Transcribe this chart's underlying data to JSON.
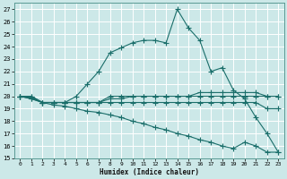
{
  "xlabel": "Humidex (Indice chaleur)",
  "background_color": "#cce8e8",
  "grid_color": "#aacccc",
  "line_color": "#1a6e6a",
  "xlim": [
    -0.5,
    23.5
  ],
  "ylim": [
    15,
    27.5
  ],
  "xticks": [
    0,
    1,
    2,
    3,
    4,
    5,
    6,
    7,
    8,
    9,
    10,
    11,
    12,
    13,
    14,
    15,
    16,
    17,
    18,
    19,
    20,
    21,
    22,
    23
  ],
  "yticks": [
    15,
    16,
    17,
    18,
    19,
    20,
    21,
    22,
    23,
    24,
    25,
    26,
    27
  ],
  "series": [
    {
      "x": [
        0,
        1,
        2,
        3,
        4,
        5,
        6,
        7,
        8,
        9,
        10,
        11,
        12,
        13,
        14,
        15,
        16,
        17,
        18,
        19,
        20,
        21,
        22,
        23
      ],
      "y": [
        20,
        19.8,
        19.5,
        19.5,
        19.5,
        20,
        21,
        22,
        23.5,
        23.9,
        24.3,
        24.5,
        24.5,
        24.3,
        27,
        25.5,
        24.5,
        22,
        22.3,
        20.5,
        19.8,
        18.3,
        17,
        15.5
      ]
    },
    {
      "x": [
        0,
        1,
        2,
        3,
        4,
        5,
        6,
        7,
        8,
        9,
        10,
        11,
        12,
        13,
        14,
        15,
        16,
        17,
        18,
        19,
        20,
        21,
        22,
        23
      ],
      "y": [
        20,
        20,
        19.5,
        19.5,
        19.5,
        19.5,
        19.5,
        19.5,
        20,
        20,
        20,
        20,
        20,
        20,
        20,
        20,
        20.3,
        20.3,
        20.3,
        20.3,
        20.3,
        20.3,
        20,
        20
      ]
    },
    {
      "x": [
        0,
        1,
        2,
        3,
        4,
        5,
        6,
        7,
        8,
        9,
        10,
        11,
        12,
        13,
        14,
        15,
        16,
        17,
        18,
        19,
        20,
        21,
        22,
        23
      ],
      "y": [
        20,
        19.9,
        19.5,
        19.5,
        19.5,
        19.5,
        19.5,
        19.5,
        19.5,
        19.5,
        19.5,
        19.5,
        19.5,
        19.5,
        19.5,
        19.5,
        19.5,
        19.5,
        19.5,
        19.5,
        19.5,
        19.5,
        19,
        19
      ]
    },
    {
      "x": [
        0,
        1,
        2,
        3,
        4,
        5,
        6,
        7,
        8,
        9,
        10,
        11,
        12,
        13,
        14,
        15,
        16,
        17,
        18,
        19,
        20,
        21,
        22,
        23
      ],
      "y": [
        20,
        20,
        19.5,
        19.5,
        19.5,
        19.5,
        19.5,
        19.5,
        19.8,
        19.8,
        20,
        20,
        20,
        20,
        20,
        20,
        20,
        20,
        20,
        20,
        20,
        20,
        20,
        20
      ]
    },
    {
      "x": [
        0,
        1,
        2,
        3,
        4,
        5,
        6,
        7,
        8,
        9,
        10,
        11,
        12,
        13,
        14,
        15,
        16,
        17,
        18,
        19,
        20,
        21,
        22,
        23
      ],
      "y": [
        20,
        19.8,
        19.5,
        19.3,
        19.2,
        19,
        18.8,
        18.7,
        18.5,
        18.3,
        18,
        17.8,
        17.5,
        17.3,
        17,
        16.8,
        16.5,
        16.3,
        16,
        15.8,
        16.3,
        16,
        15.5,
        15.5
      ]
    }
  ]
}
